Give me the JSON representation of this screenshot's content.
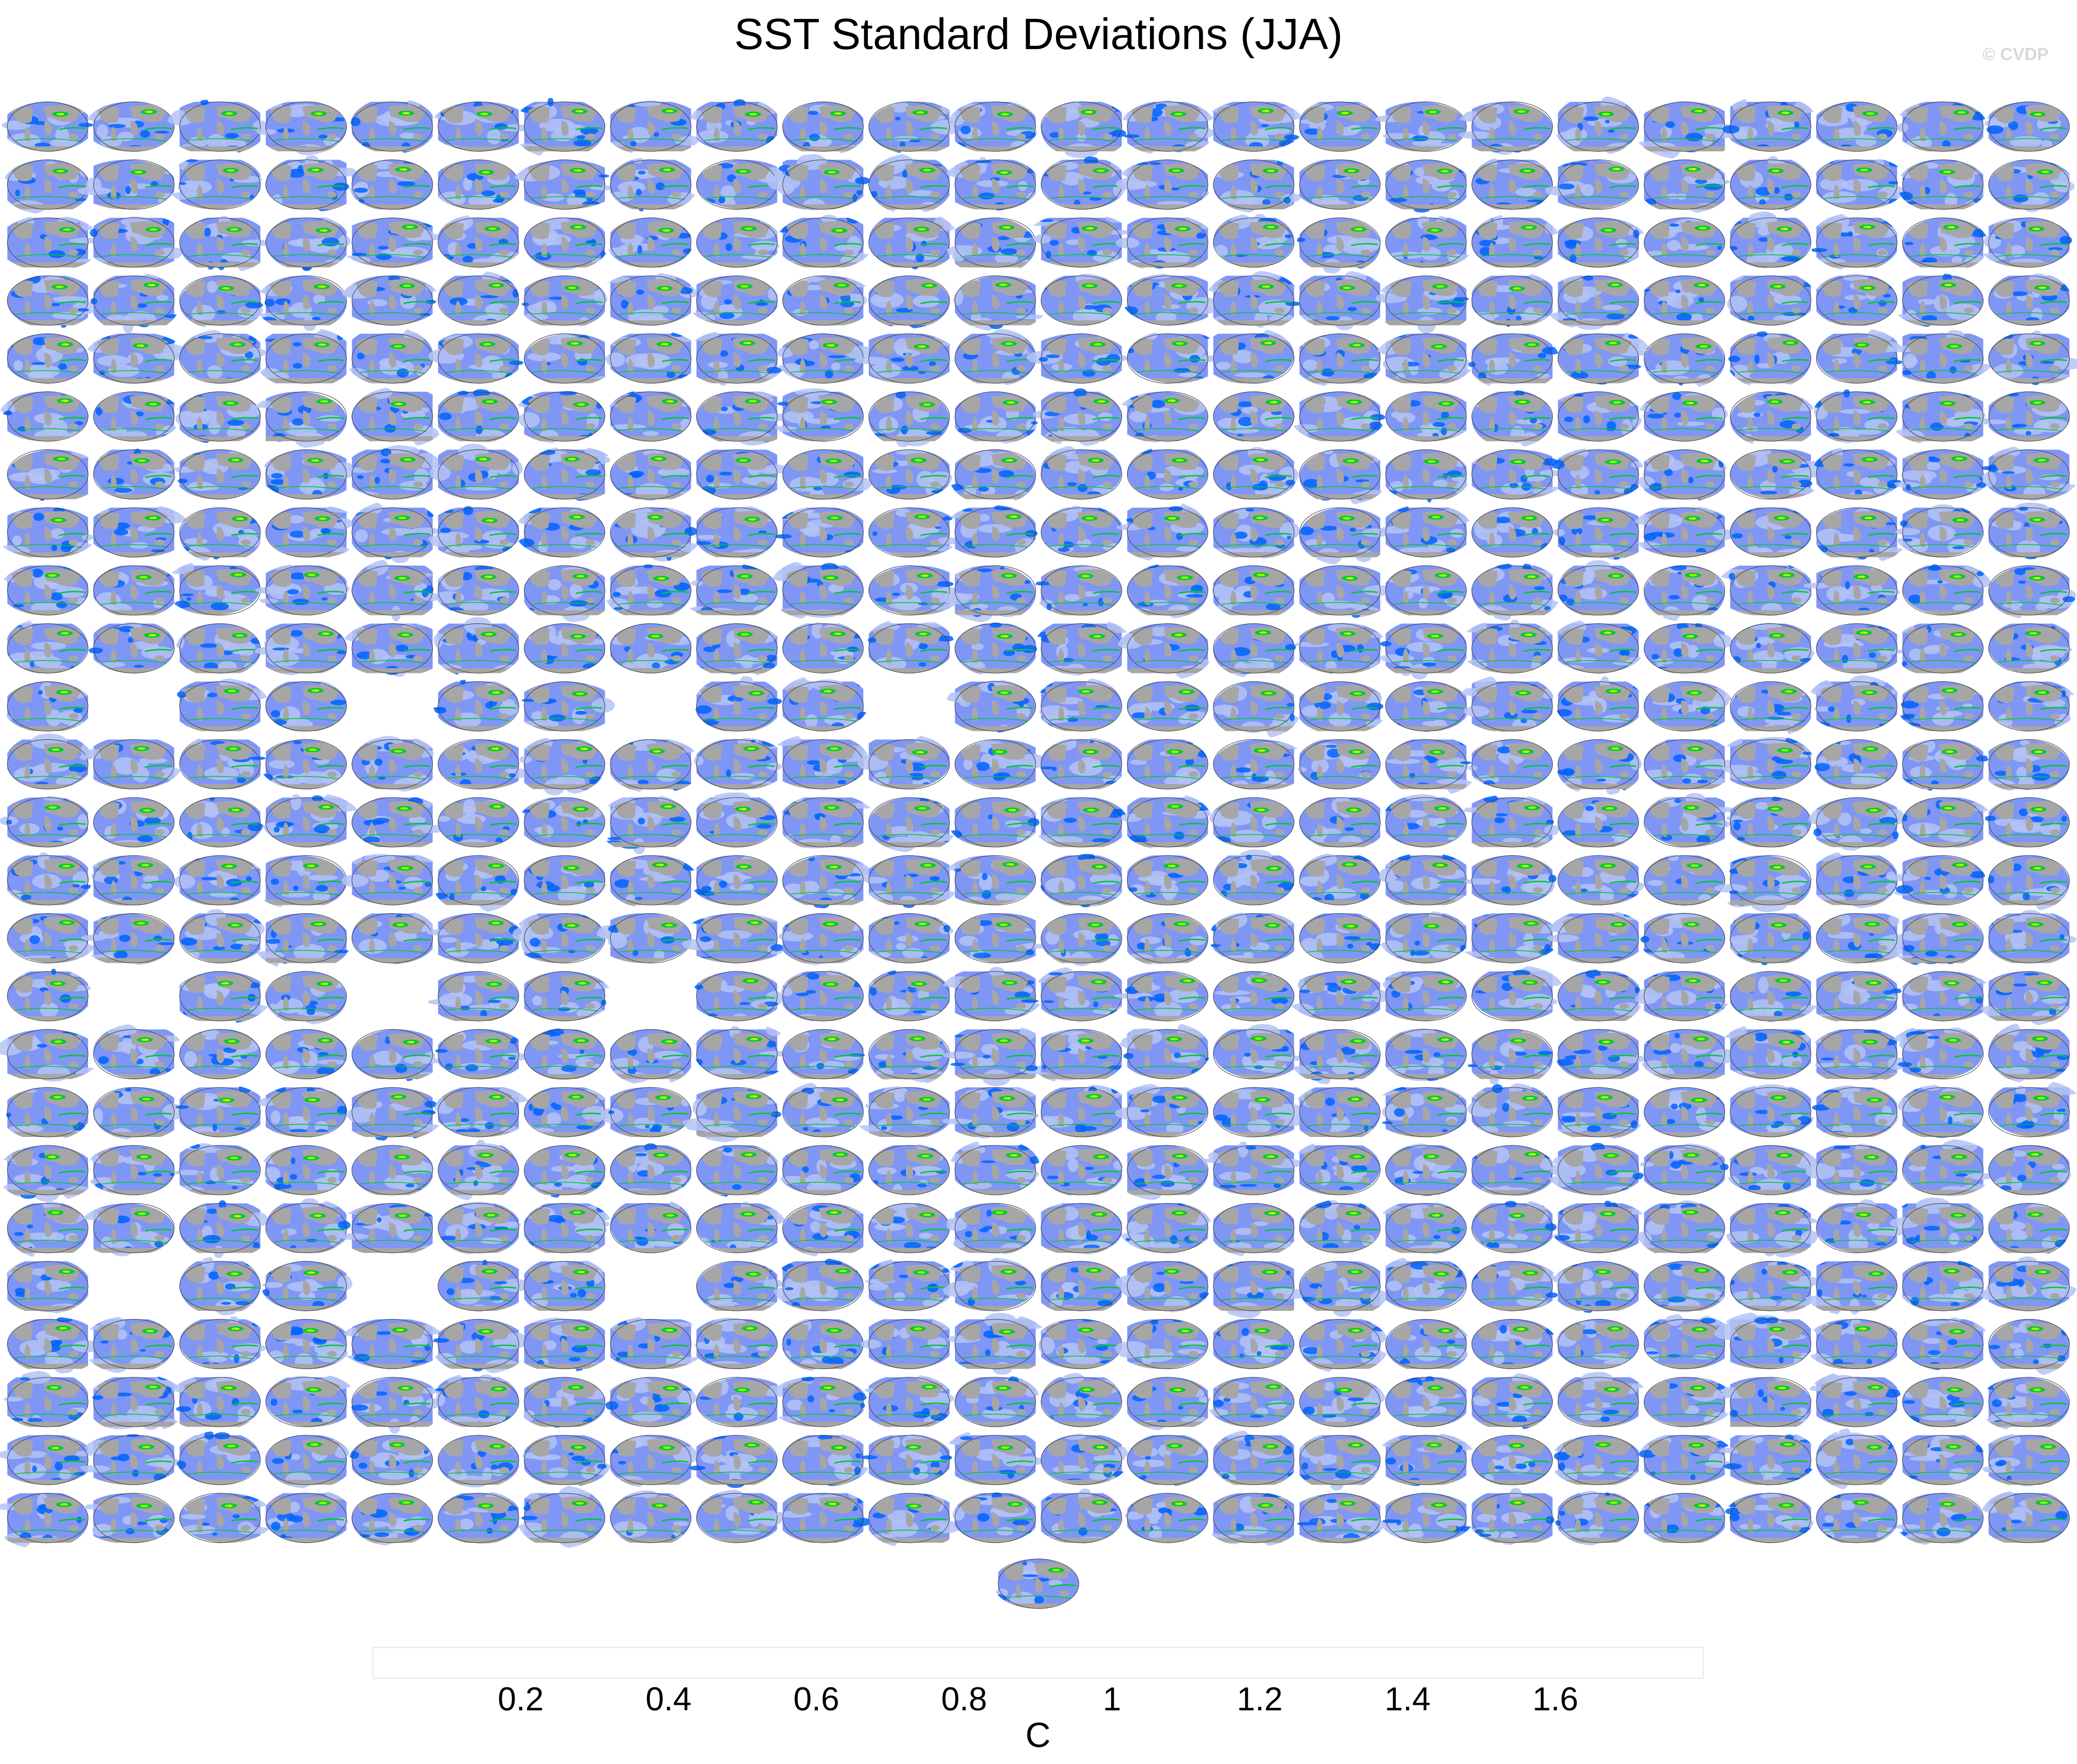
{
  "figure": {
    "title": "SST Standard Deviations (JJA)",
    "watermark": "© CVDP"
  },
  "chart_data": {
    "type": "heatmap",
    "title": "SST Standard Deviations (JJA)",
    "description_of_layout": "",
    "panel_rows": 25,
    "panel_cols": 24,
    "missing_panels": [
      [
        10,
        1
      ],
      [
        10,
        4
      ],
      [
        10,
        7
      ],
      [
        10,
        10
      ],
      [
        15,
        1
      ],
      [
        15,
        4
      ],
      [
        15,
        7
      ],
      [
        20,
        1
      ],
      [
        20,
        4
      ],
      [
        20,
        7
      ]
    ],
    "extra_bottom_panel": true,
    "colorbar": {
      "label": "C",
      "levels": [
        0.2,
        0.4,
        0.6,
        0.8,
        1,
        1.2,
        1.4,
        1.6
      ],
      "tick_labels": [
        "0.2",
        "0.4",
        "0.6",
        "0.8",
        "1",
        "1.2",
        "1.4",
        "1.6"
      ],
      "colors": [
        "#ffffff",
        "#b4c3f5",
        "#7f96f5",
        "#0064ff",
        "#00c832",
        "#96ff00",
        "#ffff00",
        "#ffa000",
        "#ff1e00"
      ]
    },
    "map_colors": {
      "land": "#a6a6a6",
      "ocean_low": "#b4c3f5",
      "ocean_mid": "#7f96f5",
      "ocean_high": "#0064ff",
      "hotspot_1": "#00c832",
      "hotspot_2": "#96ff00",
      "hotspot_3": "#ffff00"
    }
  }
}
